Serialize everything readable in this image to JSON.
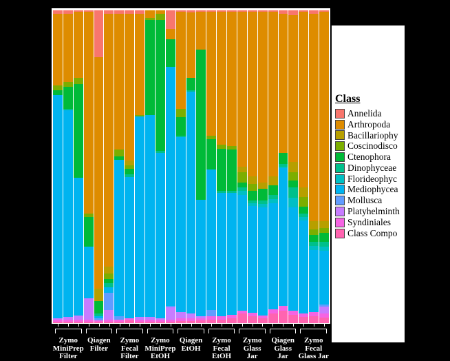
{
  "figure": {
    "background": "#000000",
    "panel_background": "#FFFFFF"
  },
  "legend": {
    "title": "Class",
    "items": [
      {
        "label": "Annelida",
        "color": "#F8766D"
      },
      {
        "label": "Arthropoda",
        "color": "#DE8C00"
      },
      {
        "label": "Bacillariophy",
        "color": "#B79F00"
      },
      {
        "label": "Coscinodisco",
        "color": "#7CAE00"
      },
      {
        "label": "Ctenophora",
        "color": "#00BA38"
      },
      {
        "label": "Dinophyceae",
        "color": "#00C08B"
      },
      {
        "label": "Florideophyc",
        "color": "#00BFC4"
      },
      {
        "label": "Mediophycea",
        "color": "#00B4F0"
      },
      {
        "label": "Mollusca",
        "color": "#619CFF"
      },
      {
        "label": "Platyhelminth",
        "color": "#C77CFF"
      },
      {
        "label": "Syndiniales",
        "color": "#F564E3"
      },
      {
        "label": "Class Compo",
        "color": "#FF64B0"
      }
    ]
  },
  "x_axis": {
    "group_labels": [
      {
        "lines": [
          "Zymo",
          "MiniPrep",
          "Filter"
        ]
      },
      {
        "lines": [
          "Qiagen",
          "Filter"
        ]
      },
      {
        "lines": [
          "Zymo",
          "Fecal",
          "Filter"
        ]
      },
      {
        "lines": [
          "Zymo",
          "MiniPrep",
          "EtOH"
        ]
      },
      {
        "lines": [
          "Qiagen",
          "EtOH"
        ]
      },
      {
        "lines": [
          "Zymo",
          "Fecal",
          "EtOH"
        ]
      },
      {
        "lines": [
          "Zymo",
          "Glass",
          "Jar"
        ]
      },
      {
        "lines": [
          "Qiagen",
          "Glass",
          "Jar"
        ]
      },
      {
        "lines": [
          "Zymo",
          "Fecal",
          "Glass Jar"
        ]
      }
    ]
  },
  "chart_data": {
    "type": "bar",
    "stacked": true,
    "percent_scale": true,
    "ylim": [
      0,
      100
    ],
    "grid": false,
    "legend_position": "right",
    "stack_order_top_to_bottom": true,
    "classes": [
      "Annelida",
      "Arthropoda",
      "Bacillariophy",
      "Coscinodisco",
      "Ctenophora",
      "Dinophyceae",
      "Florideophyc",
      "Mediophycea",
      "Mollusca",
      "Platyhelminth",
      "Syndiniales",
      "Class Compo"
    ],
    "colors": {
      "Annelida": "#F8766D",
      "Arthropoda": "#DE8C00",
      "Bacillariophy": "#B79F00",
      "Coscinodisco": "#7CAE00",
      "Ctenophora": "#00BA38",
      "Dinophyceae": "#00C08B",
      "Florideophyc": "#00BFC4",
      "Mediophycea": "#00B4F0",
      "Mollusca": "#619CFF",
      "Platyhelminth": "#C77CFF",
      "Syndiniales": "#F564E3",
      "Class Compo": "#FF64B0"
    },
    "groups": [
      "Zymo MiniPrep Filter",
      "Qiagen Filter",
      "Zymo Fecal Filter",
      "Zymo MiniPrep EtOH",
      "Qiagen EtOH",
      "Zymo Fecal EtOH",
      "Zymo Glass Jar",
      "Qiagen Glass Jar",
      "Zymo Fecal Glass Jar"
    ],
    "bars_per_group": 3,
    "bars": [
      {
        "group": "Zymo MiniPrep Filter",
        "values": {
          "Annelida": 1,
          "Arthropoda": 23,
          "Coscinodisco": 1.5,
          "Ctenophora": 1.5,
          "Mediophycea": 71.5,
          "Platyhelminth": 0.5,
          "Syndiniales": 0.5,
          "Class Compo": 0.5
        }
      },
      {
        "group": "Zymo MiniPrep Filter",
        "values": {
          "Annelida": 1,
          "Arthropoda": 22,
          "Coscinodisco": 1.5,
          "Ctenophora": 7,
          "Dinophyceae": 0.5,
          "Mediophycea": 66,
          "Platyhelminth": 1,
          "Syndiniales": 0.5,
          "Class Compo": 0.5
        }
      },
      {
        "group": "Zymo MiniPrep Filter",
        "values": {
          "Annelida": 0.5,
          "Arthropoda": 21,
          "Coscinodisco": 2,
          "Ctenophora": 30,
          "Mediophycea": 44,
          "Platyhelminth": 1.5,
          "Syndiniales": 0.5,
          "Class Compo": 0.5
        }
      },
      {
        "group": "Qiagen Filter",
        "values": {
          "Annelida": 0.5,
          "Arthropoda": 64.5,
          "Coscinodisco": 1,
          "Ctenophora": 9.5,
          "Mediophycea": 16.5,
          "Platyhelminth": 7,
          "Syndiniales": 0.5,
          "Class Compo": 0.5
        }
      },
      {
        "group": "Qiagen Filter",
        "values": {
          "Annelida": 15,
          "Arthropoda": 74,
          "Bacillariophy": 4,
          "Ctenophora": 4,
          "Dinophyceae": 0.7,
          "Mediophycea": 0.8,
          "Mollusca": 0.7,
          "Syndiniales": 0.4,
          "Class Compo": 0.4
        }
      },
      {
        "group": "Qiagen Filter",
        "values": {
          "Annelida": 1,
          "Arthropoda": 81,
          "Bacillariophy": 2.2,
          "Coscinodisco": 1.8,
          "Ctenophora": 1.3,
          "Dinophyceae": 1.3,
          "Mediophycea": 1.8,
          "Mollusca": 5.5,
          "Platyhelminth": 3,
          "Syndiniales": 0.6,
          "Class Compo": 0.5
        }
      },
      {
        "group": "Zymo Fecal Filter",
        "values": {
          "Annelida": 1,
          "Arthropoda": 43.5,
          "Coscinodisco": 2.2,
          "Ctenophora": 1.1,
          "Mediophycea": 50,
          "Mollusca": 1.2,
          "Syndiniales": 0.5,
          "Class Compo": 0.5
        }
      },
      {
        "group": "Zymo Fecal Filter",
        "values": {
          "Annelida": 1,
          "Arthropoda": 47,
          "Bacillariophy": 1.5,
          "Coscinodisco": 1.2,
          "Ctenophora": 1.8,
          "Dinophyceae": 0.8,
          "Mediophycea": 45.2,
          "Syndiniales": 0.7,
          "Class Compo": 0.8
        }
      },
      {
        "group": "Zymo Fecal Filter",
        "values": {
          "Annelida": 1,
          "Arthropoda": 32.5,
          "Coscinodisco": 0.5,
          "Mediophycea": 64,
          "Platyhelminth": 1,
          "Syndiniales": 0.5,
          "Class Compo": 0.5
        }
      },
      {
        "group": "Zymo MiniPrep EtOH",
        "values": {
          "Arthropoda": 2.5,
          "Coscinodisco": 0.5,
          "Ctenophora": 30.5,
          "Mediophycea": 64.5,
          "Platyhelminth": 1,
          "Syndiniales": 0.5,
          "Class Compo": 0.5
        }
      },
      {
        "group": "Zymo MiniPrep EtOH",
        "values": {
          "Arthropoda": 1.2,
          "Coscinodisco": 1.8,
          "Ctenophora": 42,
          "Dinophyceae": 0.5,
          "Mediophycea": 53,
          "Platyhelminth": 0.5,
          "Syndiniales": 0.5,
          "Class Compo": 0.5
        }
      },
      {
        "group": "Zymo MiniPrep EtOH",
        "values": {
          "Annelida": 6,
          "Arthropoda": 3.3,
          "Ctenophora": 8.8,
          "Mediophycea": 76.4,
          "Mollusca": 0.5,
          "Platyhelminth": 4,
          "Syndiniales": 0.5,
          "Class Compo": 0.5
        }
      },
      {
        "group": "Qiagen EtOH",
        "values": {
          "Annelida": 0.5,
          "Arthropoda": 31,
          "Coscinodisco": 2.6,
          "Ctenophora": 6,
          "Dinophyceae": 0.5,
          "Mediophycea": 55.9,
          "Platyhelminth": 2,
          "Syndiniales": 0.8,
          "Class Compo": 0.7
        }
      },
      {
        "group": "Qiagen EtOH",
        "values": {
          "Annelida": 0.7,
          "Arthropoda": 20.8,
          "Ctenophora": 4,
          "Dinophyceae": 0.5,
          "Mediophycea": 71,
          "Platyhelminth": 1.5,
          "Syndiniales": 0.8,
          "Class Compo": 0.7
        }
      },
      {
        "group": "Qiagen EtOH",
        "values": {
          "Annelida": 0.5,
          "Arthropoda": 12,
          "Ctenophora": 48,
          "Mediophycea": 37.4,
          "Platyhelminth": 0.6,
          "Syndiniales": 0.7,
          "Class Compo": 0.8
        }
      },
      {
        "group": "Zymo Fecal EtOH",
        "values": {
          "Annelida": 0.5,
          "Arthropoda": 39.5,
          "Coscinodisco": 1.2,
          "Ctenophora": 9.7,
          "Mediophycea": 45,
          "Mollusca": 2,
          "Syndiniales": 0.9,
          "Class Compo": 1.2
        }
      },
      {
        "group": "Zymo Fecal EtOH",
        "values": {
          "Annelida": 0.5,
          "Arthropoda": 42.5,
          "Coscinodisco": 1.2,
          "Ctenophora": 13.6,
          "Dinophyceae": 0.5,
          "Mediophycea": 39.5,
          "Syndiniales": 1,
          "Class Compo": 1.2
        }
      },
      {
        "group": "Zymo Fecal EtOH",
        "values": {
          "Annelida": 0.5,
          "Arthropoda": 43,
          "Coscinodisco": 1.1,
          "Ctenophora": 13.2,
          "Dinophyceae": 0.6,
          "Mediophycea": 38.9,
          "Syndiniales": 1.2,
          "Class Compo": 1.5
        }
      },
      {
        "group": "Zymo Glass Jar",
        "values": {
          "Annelida": 0.5,
          "Arthropoda": 49.5,
          "Bacillariophy": 1.8,
          "Coscinodisco": 3.3,
          "Ctenophora": 1.5,
          "Dinophyceae": 1.2,
          "Florideophyc": 1.2,
          "Mediophycea": 37,
          "Syndiniales": 1,
          "Class Compo": 3
        }
      },
      {
        "group": "Zymo Glass Jar",
        "values": {
          "Annelida": 0.5,
          "Arthropoda": 52.5,
          "Bacillariophy": 2.6,
          "Coscinodisco": 2.2,
          "Ctenophora": 2.9,
          "Dinophyceae": 1,
          "Florideophyc": 0.9,
          "Mediophycea": 34,
          "Syndiniales": 1.2,
          "Class Compo": 2.2
        }
      },
      {
        "group": "Zymo Glass Jar",
        "values": {
          "Annelida": 0.5,
          "Arthropoda": 54.5,
          "Bacillariophy": 2,
          "Ctenophora": 3.7,
          "Dinophyceae": 1.1,
          "Florideophyc": 1.1,
          "Mediophycea": 34.6,
          "Syndiniales": 1,
          "Class Compo": 1.5
        }
      },
      {
        "group": "Qiagen Glass Jar",
        "values": {
          "Annelida": 0.5,
          "Arthropoda": 52.5,
          "Bacillariophy": 2.9,
          "Ctenophora": 3.1,
          "Dinophyceae": 1.3,
          "Florideophyc": 1.3,
          "Mediophycea": 34,
          "Syndiniales": 1.4,
          "Class Compo": 3
        }
      },
      {
        "group": "Qiagen Glass Jar",
        "values": {
          "Annelida": 1.2,
          "Arthropoda": 44.3,
          "Ctenophora": 3.6,
          "Dinophyceae": 0.8,
          "Florideophyc": 0.6,
          "Mediophycea": 44,
          "Syndiniales": 1.5,
          "Class Compo": 4
        }
      },
      {
        "group": "Qiagen Glass Jar",
        "values": {
          "Annelida": 1.5,
          "Arthropoda": 47,
          "Bacillariophy": 3.3,
          "Coscinodisco": 2.6,
          "Ctenophora": 2.2,
          "Dinophyceae": 3.3,
          "Florideophyc": 3.1,
          "Mediophycea": 33,
          "Syndiniales": 1.3,
          "Class Compo": 2.7
        }
      },
      {
        "group": "Zymo Fecal Glass Jar",
        "values": {
          "Annelida": 0.5,
          "Arthropoda": 56,
          "Bacillariophy": 3.3,
          "Coscinodisco": 2.9,
          "Ctenophora": 2.2,
          "Dinophyceae": 1.2,
          "Florideophyc": 1.1,
          "Mediophycea": 29.8,
          "Syndiniales": 1,
          "Class Compo": 2
        }
      },
      {
        "group": "Zymo Fecal Glass Jar",
        "values": {
          "Annelida": 1,
          "Arthropoda": 66.5,
          "Bacillariophy": 2.6,
          "Coscinodisco": 1.8,
          "Ctenophora": 2.2,
          "Dinophyceae": 1.3,
          "Florideophyc": 1.3,
          "Mediophycea": 19.8,
          "Syndiniales": 1.3,
          "Class Compo": 2.2
        }
      },
      {
        "group": "Zymo Fecal Glass Jar",
        "values": {
          "Annelida": 0.5,
          "Arthropoda": 67,
          "Bacillariophy": 2.2,
          "Coscinodisco": 1.5,
          "Ctenophora": 2.9,
          "Dinophyceae": 1.5,
          "Florideophyc": 1.2,
          "Mediophycea": 17.2,
          "Mollusca": 0.8,
          "Platyhelminth": 2.2,
          "Syndiniales": 1.2,
          "Class Compo": 1.8
        }
      }
    ]
  }
}
